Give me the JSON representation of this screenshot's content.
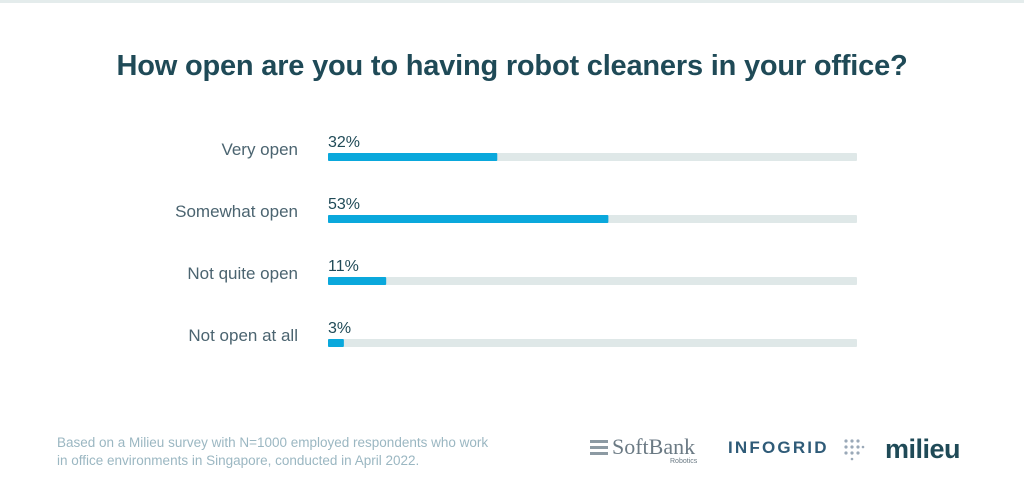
{
  "chart_data": {
    "type": "bar",
    "title": "How open are you to having robot cleaners in your office?",
    "categories": [
      "Very open",
      "Somewhat open",
      "Not quite open",
      "Not open at all"
    ],
    "values": [
      32,
      53,
      11,
      3
    ],
    "value_labels": [
      "32%",
      "53%",
      "11%",
      "3%"
    ],
    "xlim": [
      0,
      100
    ],
    "orientation": "horizontal",
    "grid": false,
    "legend": "none",
    "colors": {
      "bar": "#0aa8dc",
      "track": "#dfe8e8",
      "label": "#4b6470",
      "value": "#1f4a57"
    }
  },
  "footnote": {
    "line1": "Based on a Milieu survey with N=1000 employed respondents who work",
    "line2": "in office environments in Singapore, conducted in April 2022."
  },
  "logos": {
    "softbank": {
      "name": "SoftBank",
      "sub": "Robotics"
    },
    "infogrid": {
      "name": "INFOGRID"
    },
    "milieu": {
      "name": "milieu"
    }
  }
}
